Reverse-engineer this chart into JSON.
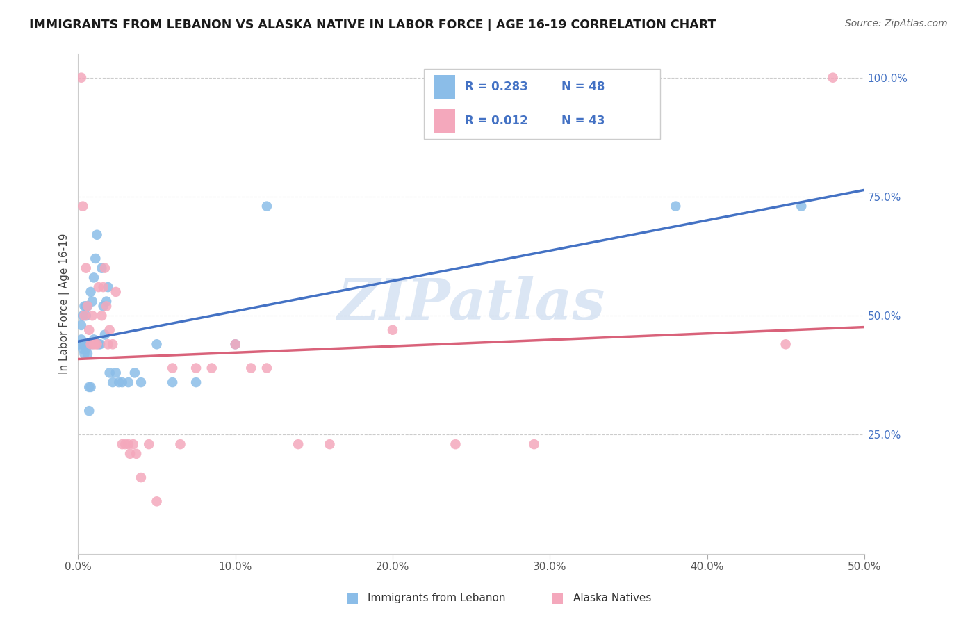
{
  "title": "IMMIGRANTS FROM LEBANON VS ALASKA NATIVE IN LABOR FORCE | AGE 16-19 CORRELATION CHART",
  "source": "Source: ZipAtlas.com",
  "ylabel": "In Labor Force | Age 16-19",
  "xlim": [
    0.0,
    0.5
  ],
  "ylim": [
    0.0,
    1.05
  ],
  "x_tick_labels": [
    "0.0%",
    "10.0%",
    "20.0%",
    "30.0%",
    "40.0%",
    "50.0%"
  ],
  "x_tick_vals": [
    0.0,
    0.1,
    0.2,
    0.3,
    0.4,
    0.5
  ],
  "y_tick_labels": [
    "25.0%",
    "50.0%",
    "75.0%",
    "100.0%"
  ],
  "y_tick_vals": [
    0.25,
    0.5,
    0.75,
    1.0
  ],
  "legend_label1": "Immigrants from Lebanon",
  "legend_label2": "Alaska Natives",
  "R1": "0.283",
  "N1": "48",
  "R2": "0.012",
  "N2": "43",
  "color_blue": "#8BBDE8",
  "color_pink": "#F4A8BC",
  "line_blue": "#4472C4",
  "line_pink": "#D9627A",
  "watermark": "ZIPatlas",
  "blue_x": [
    0.001,
    0.002,
    0.002,
    0.003,
    0.003,
    0.003,
    0.004,
    0.004,
    0.005,
    0.005,
    0.005,
    0.005,
    0.006,
    0.006,
    0.006,
    0.007,
    0.007,
    0.007,
    0.008,
    0.008,
    0.009,
    0.009,
    0.01,
    0.01,
    0.011,
    0.012,
    0.013,
    0.014,
    0.015,
    0.016,
    0.017,
    0.018,
    0.019,
    0.02,
    0.022,
    0.024,
    0.026,
    0.028,
    0.032,
    0.036,
    0.04,
    0.05,
    0.06,
    0.075,
    0.1,
    0.12,
    0.38,
    0.46
  ],
  "blue_y": [
    0.44,
    0.45,
    0.48,
    0.43,
    0.44,
    0.5,
    0.42,
    0.52,
    0.43,
    0.44,
    0.5,
    0.52,
    0.42,
    0.44,
    0.52,
    0.3,
    0.35,
    0.44,
    0.35,
    0.55,
    0.44,
    0.53,
    0.45,
    0.58,
    0.62,
    0.67,
    0.44,
    0.44,
    0.6,
    0.52,
    0.46,
    0.53,
    0.56,
    0.38,
    0.36,
    0.38,
    0.36,
    0.36,
    0.36,
    0.38,
    0.36,
    0.44,
    0.36,
    0.36,
    0.44,
    0.73,
    0.73,
    0.73
  ],
  "pink_x": [
    0.002,
    0.003,
    0.004,
    0.005,
    0.006,
    0.007,
    0.008,
    0.009,
    0.01,
    0.011,
    0.012,
    0.013,
    0.015,
    0.016,
    0.017,
    0.018,
    0.019,
    0.02,
    0.022,
    0.024,
    0.028,
    0.03,
    0.032,
    0.033,
    0.035,
    0.037,
    0.04,
    0.045,
    0.05,
    0.06,
    0.065,
    0.075,
    0.085,
    0.1,
    0.11,
    0.12,
    0.14,
    0.16,
    0.2,
    0.24,
    0.29,
    0.45,
    0.48
  ],
  "pink_y": [
    1.0,
    0.73,
    0.5,
    0.6,
    0.52,
    0.47,
    0.44,
    0.5,
    0.44,
    0.44,
    0.44,
    0.56,
    0.5,
    0.56,
    0.6,
    0.52,
    0.44,
    0.47,
    0.44,
    0.55,
    0.23,
    0.23,
    0.23,
    0.21,
    0.23,
    0.21,
    0.16,
    0.23,
    0.11,
    0.39,
    0.23,
    0.39,
    0.39,
    0.44,
    0.39,
    0.39,
    0.23,
    0.23,
    0.47,
    0.23,
    0.23,
    0.44,
    1.0
  ]
}
